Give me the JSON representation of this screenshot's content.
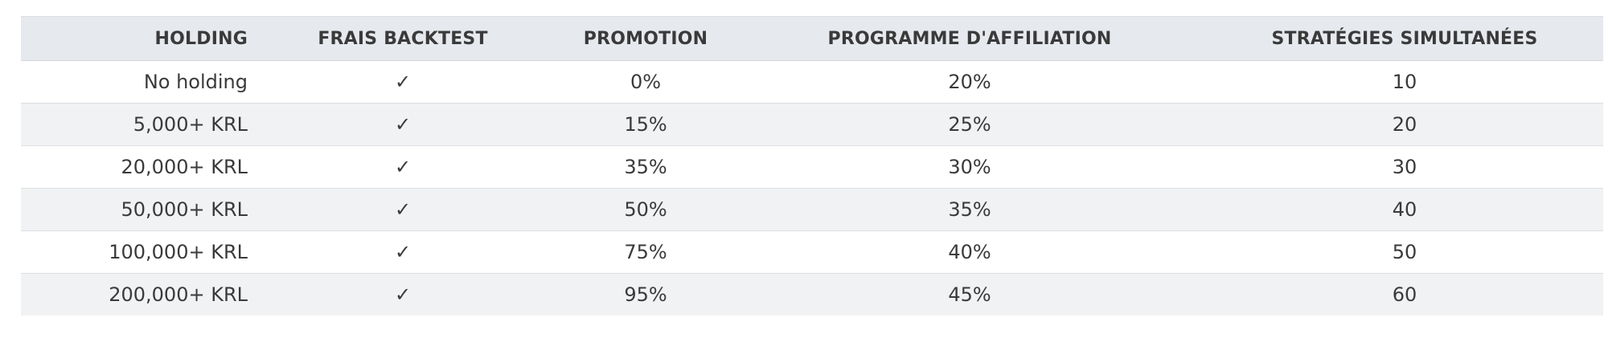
{
  "table": {
    "headers": {
      "holding": "HOLDING",
      "frais": "FRAIS BACKTEST",
      "promotion": "PROMOTION",
      "affiliation": "PROGRAMME D'AFFILIATION",
      "strategies": "STRATÉGIES SIMULTANÉES"
    },
    "rows": [
      {
        "holding": "No holding",
        "frais": "✓",
        "promotion": "0%",
        "affiliation": "20%",
        "strategies": "10"
      },
      {
        "holding": "5,000+ KRL",
        "frais": "✓",
        "promotion": "15%",
        "affiliation": "25%",
        "strategies": "20"
      },
      {
        "holding": "20,000+ KRL",
        "frais": "✓",
        "promotion": "35%",
        "affiliation": "30%",
        "strategies": "30"
      },
      {
        "holding": "50,000+ KRL",
        "frais": "✓",
        "promotion": "50%",
        "affiliation": "35%",
        "strategies": "40"
      },
      {
        "holding": "100,000+ KRL",
        "frais": "✓",
        "promotion": "75%",
        "affiliation": "40%",
        "strategies": "50"
      },
      {
        "holding": "200,000+ KRL",
        "frais": "✓",
        "promotion": "95%",
        "affiliation": "45%",
        "strategies": "60"
      }
    ]
  }
}
